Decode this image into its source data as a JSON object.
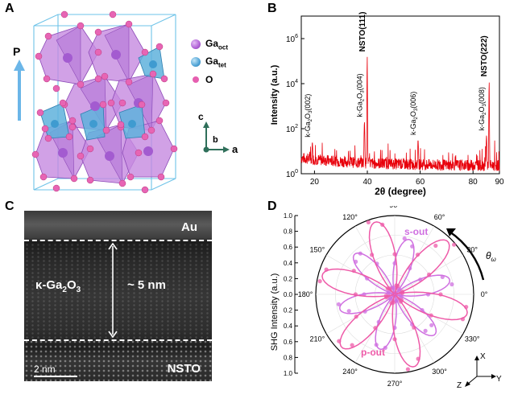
{
  "panels": {
    "a": {
      "label": "A"
    },
    "b": {
      "label": "B"
    },
    "c": {
      "label": "C"
    },
    "d": {
      "label": "D"
    }
  },
  "structure": {
    "polarization_label": "P",
    "legend": [
      {
        "main": "Ga",
        "sub": "oct",
        "color": "#b061d6"
      },
      {
        "main": "Ga",
        "sub": "tet",
        "color": "#4fa3d6"
      },
      {
        "main": "O",
        "sub": "",
        "color": "#e65fb0"
      }
    ],
    "axes": {
      "c": "c",
      "b": "b",
      "a": "a"
    }
  },
  "xrd_chart": {
    "chart_data": {
      "type": "line",
      "title": "",
      "xlabel": "2θ (degree)",
      "ylabel": "Intensity (a.u.)",
      "xlim": [
        15,
        90
      ],
      "ylim_log10": [
        0,
        7
      ],
      "x_ticks": [
        "20",
        "40",
        "60",
        "80",
        "90"
      ],
      "y_ticks": [
        {
          "base": "10",
          "exp": "0"
        },
        {
          "base": "10",
          "exp": "2"
        },
        {
          "base": "10",
          "exp": "4"
        },
        {
          "base": "10",
          "exp": "6"
        }
      ],
      "peaks": [
        {
          "two_theta": 19.2,
          "log_intensity": 1.4,
          "label_base": "k-Ga",
          "label_sub": "2",
          "label_mid": "O",
          "label_sub2": "3",
          "label_end": "(002)"
        },
        {
          "two_theta": 38.9,
          "log_intensity": 2.3,
          "label_base": "k-Ga",
          "label_sub": "2",
          "label_mid": "O",
          "label_sub2": "3",
          "label_end": "(004)"
        },
        {
          "two_theta": 39.95,
          "log_intensity": 5.2,
          "label_base": "NSTO(111)",
          "label_sub": "",
          "label_mid": "",
          "label_sub2": "",
          "label_end": ""
        },
        {
          "two_theta": 59.2,
          "log_intensity": 1.5,
          "label_base": "k-Ga",
          "label_sub": "2",
          "label_mid": "O",
          "label_sub2": "3",
          "label_end": "(006)"
        },
        {
          "two_theta": 85.1,
          "log_intensity": 1.7,
          "label_base": "k-Ga",
          "label_sub": "2",
          "label_mid": "O",
          "label_sub2": "3",
          "label_end": "(008)"
        },
        {
          "two_theta": 86.1,
          "log_intensity": 4.1,
          "label_base": "NSTO(222)",
          "label_sub": "",
          "label_mid": "",
          "label_sub2": "",
          "label_end": ""
        }
      ],
      "background_level_log10": 0.35,
      "color": "#e8000b"
    }
  },
  "stem": {
    "top_label": "Au",
    "film_base": "κ-Ga",
    "film_sub1": "2",
    "film_mid": "O",
    "film_sub2": "3",
    "thickness": "~ 5 nm",
    "substrate_label": "NSTO",
    "scale_bar": "2 nm"
  },
  "shg_chart": {
    "chart_data": {
      "type": "scatter",
      "coordinate_system": "polar",
      "ylabel": "SHG Intensity (a.u.)",
      "radial_ticks": [
        "1.0",
        "0.8",
        "0.6",
        "0.4",
        "0.2",
        "0.0",
        "0.2",
        "0.4",
        "0.6",
        "0.8",
        "1.0"
      ],
      "angle_ticks": [
        "0°",
        "30°",
        "60°",
        "90°",
        "120°",
        "150°",
        "180°",
        "210°",
        "240°",
        "270°",
        "300°",
        "330°"
      ],
      "angle_symbol": "θ",
      "angle_subscript": "ω",
      "series": [
        {
          "name": "s-out",
          "color": "#cf6fe0",
          "lobe_centers_deg": [
            15,
            75,
            135,
            195,
            255,
            315
          ],
          "amplitude": 0.72
        },
        {
          "name": "p-out",
          "color": "#ee5aa8",
          "lobe_centers_deg": [
            45,
            105,
            165,
            225,
            285,
            345
          ],
          "amplitude": 0.95
        }
      ],
      "frame_axes": {
        "x": "X",
        "y": "Y",
        "z": "Z"
      }
    }
  }
}
